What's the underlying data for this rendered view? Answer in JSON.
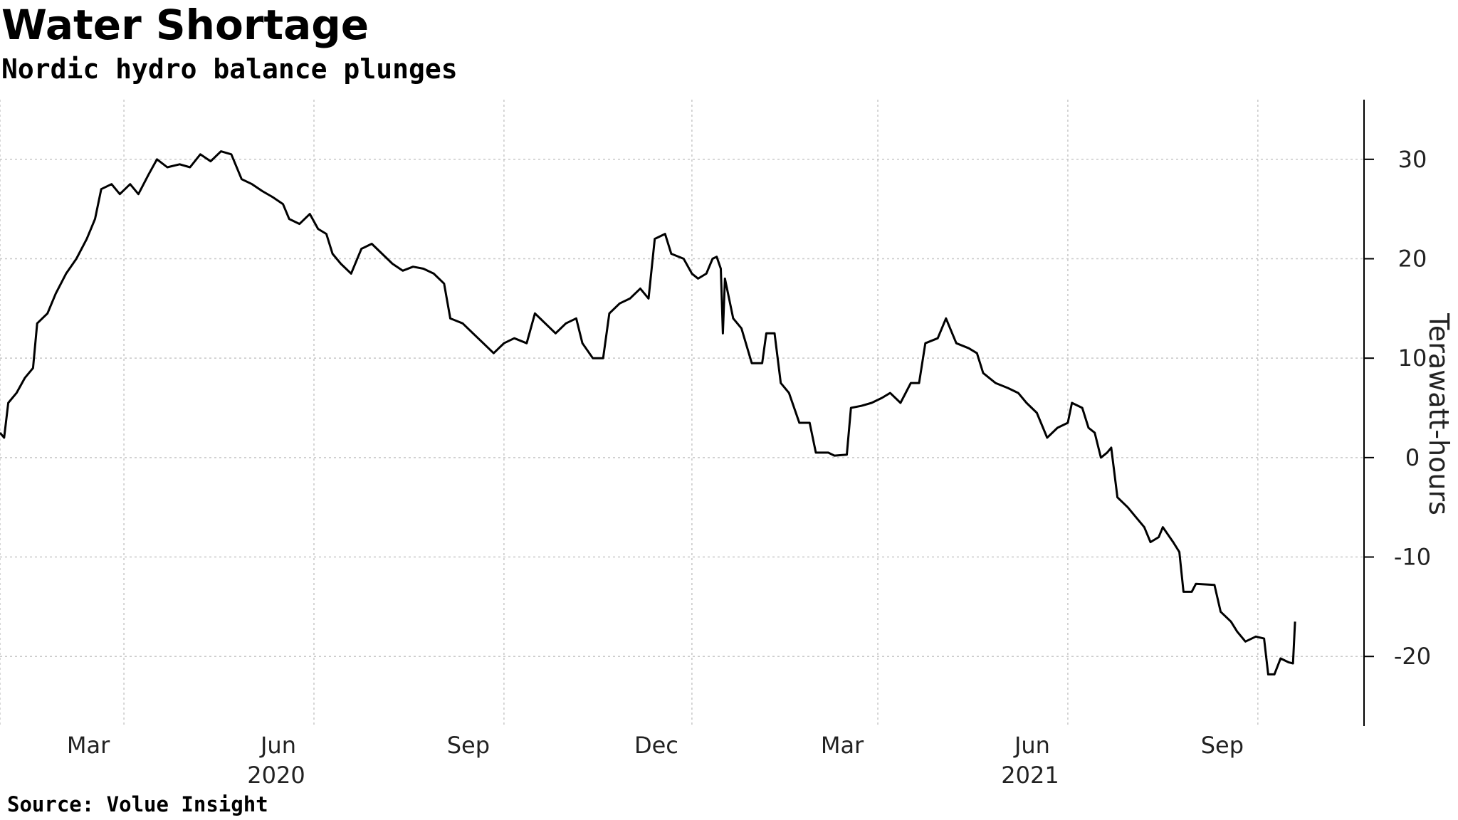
{
  "title": "Water Shortage",
  "subtitle": "Nordic hydro balance plunges",
  "source": "Source: Volue Insight",
  "chart_data": {
    "type": "line",
    "ylabel": "Terawatt-hours",
    "ylim": [
      -27,
      36
    ],
    "y_ticks": [
      30,
      20,
      10,
      0,
      -10,
      -20
    ],
    "y_tick_labels": [
      "30",
      "20",
      "10",
      "0",
      "-10",
      "-20"
    ],
    "x_range": [
      "2020-01-01",
      "2021-10-10"
    ],
    "x_ticks": [
      {
        "date": "2020-03-01",
        "label": "Mar"
      },
      {
        "date": "2020-06-01",
        "label": "Jun"
      },
      {
        "date": "2020-09-01",
        "label": "Sep"
      },
      {
        "date": "2020-12-01",
        "label": "Dec"
      },
      {
        "date": "2021-03-01",
        "label": "Mar"
      },
      {
        "date": "2021-06-01",
        "label": "Jun"
      },
      {
        "date": "2021-09-01",
        "label": "Sep"
      }
    ],
    "year_labels": [
      {
        "date": "2020-07-01",
        "label": "2020"
      },
      {
        "date": "2021-07-01",
        "label": "2021"
      }
    ],
    "grid": true,
    "line_color": "#000000",
    "series": [
      {
        "points": [
          [
            "2020-01-01",
            2.5
          ],
          [
            "2020-01-03",
            2.0
          ],
          [
            "2020-01-05",
            5.5
          ],
          [
            "2020-01-09",
            6.5
          ],
          [
            "2020-01-13",
            8.0
          ],
          [
            "2020-01-17",
            9.0
          ],
          [
            "2020-01-19",
            13.5
          ],
          [
            "2020-01-24",
            14.5
          ],
          [
            "2020-01-28",
            16.5
          ],
          [
            "2020-02-02",
            18.5
          ],
          [
            "2020-02-07",
            20.0
          ],
          [
            "2020-02-12",
            22.0
          ],
          [
            "2020-02-16",
            24.0
          ],
          [
            "2020-02-19",
            27.0
          ],
          [
            "2020-02-24",
            27.5
          ],
          [
            "2020-02-28",
            26.5
          ],
          [
            "2020-03-04",
            27.5
          ],
          [
            "2020-03-08",
            26.5
          ],
          [
            "2020-03-13",
            28.5
          ],
          [
            "2020-03-17",
            30.0
          ],
          [
            "2020-03-22",
            29.2
          ],
          [
            "2020-03-28",
            29.5
          ],
          [
            "2020-04-02",
            29.2
          ],
          [
            "2020-04-07",
            30.5
          ],
          [
            "2020-04-12",
            29.8
          ],
          [
            "2020-04-17",
            30.8
          ],
          [
            "2020-04-22",
            30.5
          ],
          [
            "2020-04-27",
            28.0
          ],
          [
            "2020-05-02",
            27.5
          ],
          [
            "2020-05-07",
            26.8
          ],
          [
            "2020-05-12",
            26.2
          ],
          [
            "2020-05-17",
            25.5
          ],
          [
            "2020-05-20",
            24.0
          ],
          [
            "2020-05-25",
            23.5
          ],
          [
            "2020-05-30",
            24.5
          ],
          [
            "2020-06-03",
            23.0
          ],
          [
            "2020-06-07",
            22.5
          ],
          [
            "2020-06-10",
            20.5
          ],
          [
            "2020-06-14",
            19.5
          ],
          [
            "2020-06-19",
            18.5
          ],
          [
            "2020-06-24",
            21.0
          ],
          [
            "2020-06-29",
            21.5
          ],
          [
            "2020-07-04",
            20.5
          ],
          [
            "2020-07-09",
            19.5
          ],
          [
            "2020-07-14",
            18.8
          ],
          [
            "2020-07-19",
            19.2
          ],
          [
            "2020-07-24",
            19.0
          ],
          [
            "2020-07-29",
            18.5
          ],
          [
            "2020-08-03",
            17.5
          ],
          [
            "2020-08-06",
            14.0
          ],
          [
            "2020-08-12",
            13.5
          ],
          [
            "2020-08-17",
            12.5
          ],
          [
            "2020-08-22",
            11.5
          ],
          [
            "2020-08-27",
            10.5
          ],
          [
            "2020-09-01",
            11.5
          ],
          [
            "2020-09-06",
            12.0
          ],
          [
            "2020-09-12",
            11.5
          ],
          [
            "2020-09-16",
            14.5
          ],
          [
            "2020-09-21",
            13.5
          ],
          [
            "2020-09-26",
            12.5
          ],
          [
            "2020-10-01",
            13.5
          ],
          [
            "2020-10-06",
            14.0
          ],
          [
            "2020-10-09",
            11.5
          ],
          [
            "2020-10-14",
            10.0
          ],
          [
            "2020-10-19",
            10.0
          ],
          [
            "2020-10-22",
            14.5
          ],
          [
            "2020-10-27",
            15.5
          ],
          [
            "2020-11-01",
            16.0
          ],
          [
            "2020-11-06",
            17.0
          ],
          [
            "2020-11-10",
            16.0
          ],
          [
            "2020-11-13",
            22.0
          ],
          [
            "2020-11-18",
            22.5
          ],
          [
            "2020-11-21",
            20.5
          ],
          [
            "2020-11-27",
            20.0
          ],
          [
            "2020-12-01",
            18.5
          ],
          [
            "2020-12-04",
            18.0
          ],
          [
            "2020-12-08",
            18.5
          ],
          [
            "2020-12-11",
            20.0
          ],
          [
            "2020-12-13",
            20.2
          ],
          [
            "2020-12-15",
            19.0
          ],
          [
            "2020-12-16",
            12.5
          ],
          [
            "2020-12-17",
            18.0
          ],
          [
            "2020-12-21",
            14.0
          ],
          [
            "2020-12-25",
            13.0
          ],
          [
            "2020-12-30",
            9.5
          ],
          [
            "2021-01-04",
            9.5
          ],
          [
            "2021-01-06",
            12.5
          ],
          [
            "2021-01-10",
            12.5
          ],
          [
            "2021-01-13",
            7.5
          ],
          [
            "2021-01-17",
            6.5
          ],
          [
            "2021-01-22",
            3.5
          ],
          [
            "2021-01-27",
            3.5
          ],
          [
            "2021-01-30",
            0.5
          ],
          [
            "2021-02-05",
            0.5
          ],
          [
            "2021-02-08",
            0.2
          ],
          [
            "2021-02-14",
            0.3
          ],
          [
            "2021-02-16",
            5.0
          ],
          [
            "2021-02-21",
            5.2
          ],
          [
            "2021-02-26",
            5.5
          ],
          [
            "2021-03-03",
            6.0
          ],
          [
            "2021-03-07",
            6.5
          ],
          [
            "2021-03-12",
            5.5
          ],
          [
            "2021-03-17",
            7.5
          ],
          [
            "2021-03-21",
            7.5
          ],
          [
            "2021-03-24",
            11.5
          ],
          [
            "2021-03-30",
            12.0
          ],
          [
            "2021-04-03",
            14.0
          ],
          [
            "2021-04-08",
            11.5
          ],
          [
            "2021-04-14",
            11.0
          ],
          [
            "2021-04-18",
            10.5
          ],
          [
            "2021-04-21",
            8.5
          ],
          [
            "2021-04-27",
            7.5
          ],
          [
            "2021-05-03",
            7.0
          ],
          [
            "2021-05-08",
            6.5
          ],
          [
            "2021-05-12",
            5.5
          ],
          [
            "2021-05-17",
            4.5
          ],
          [
            "2021-05-22",
            2.0
          ],
          [
            "2021-05-27",
            3.0
          ],
          [
            "2021-06-01",
            3.5
          ],
          [
            "2021-06-03",
            5.5
          ],
          [
            "2021-06-08",
            5.0
          ],
          [
            "2021-06-11",
            3.0
          ],
          [
            "2021-06-14",
            2.5
          ],
          [
            "2021-06-17",
            0.0
          ],
          [
            "2021-06-20",
            0.5
          ],
          [
            "2021-06-22",
            1.0
          ],
          [
            "2021-06-25",
            -4.0
          ],
          [
            "2021-06-30",
            -5.0
          ],
          [
            "2021-07-04",
            -6.0
          ],
          [
            "2021-07-08",
            -7.0
          ],
          [
            "2021-07-11",
            -8.5
          ],
          [
            "2021-07-15",
            -8.0
          ],
          [
            "2021-07-17",
            -7.0
          ],
          [
            "2021-07-22",
            -8.5
          ],
          [
            "2021-07-25",
            -9.5
          ],
          [
            "2021-07-27",
            -13.5
          ],
          [
            "2021-07-31",
            -13.5
          ],
          [
            "2021-08-02",
            -12.7
          ],
          [
            "2021-08-11",
            -12.8
          ],
          [
            "2021-08-14",
            -15.5
          ],
          [
            "2021-08-19",
            -16.5
          ],
          [
            "2021-08-22",
            -17.5
          ],
          [
            "2021-08-26",
            -18.5
          ],
          [
            "2021-08-31",
            -18.0
          ],
          [
            "2021-09-04",
            -18.2
          ],
          [
            "2021-09-06",
            -21.8
          ],
          [
            "2021-09-09",
            -21.8
          ],
          [
            "2021-09-12",
            -20.2
          ],
          [
            "2021-09-16",
            -20.6
          ],
          [
            "2021-09-18",
            -20.7
          ],
          [
            "2021-09-19",
            -16.5
          ]
        ]
      }
    ]
  }
}
